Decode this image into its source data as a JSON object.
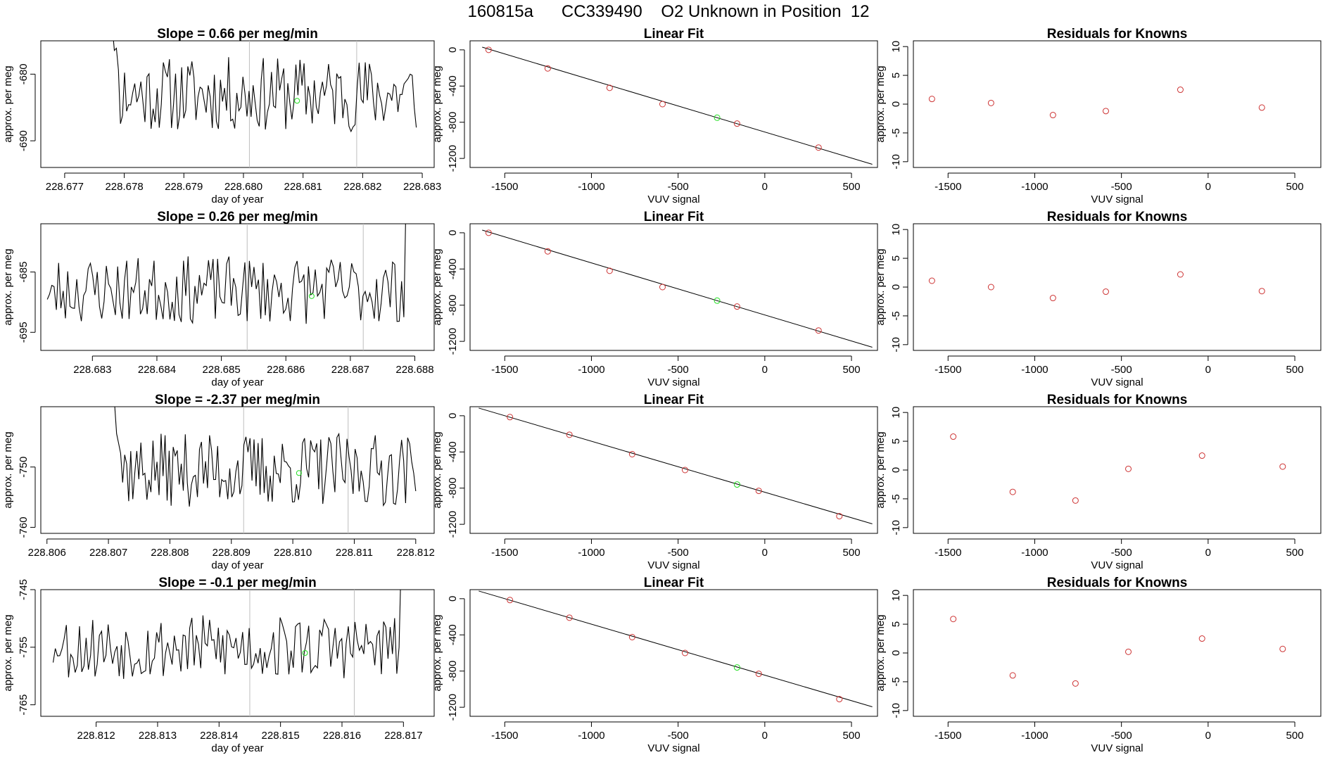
{
  "page": {
    "title": "160815a      CC339490    O2 Unknown in Position  12"
  },
  "colors": {
    "known": "#cd3333",
    "unknown": "#22dd22",
    "line": "#000000",
    "vline": "#bebebe"
  },
  "chart_data": [
    {
      "type": "line",
      "row": 0,
      "kind": "series",
      "title": "Slope =  0.66  per meg/min",
      "xlabel": "day of year",
      "ylabel": "approx. per meg",
      "xlim": [
        228.6766,
        228.6832
      ],
      "ylim": [
        -694,
        -675
      ],
      "xticks": [
        228.677,
        228.678,
        228.679,
        228.68,
        228.681,
        228.682,
        228.683
      ],
      "xtick_labels": [
        "228.677",
        "228.678",
        "228.679",
        "228.680",
        "228.681",
        "228.682",
        "228.683"
      ],
      "yticks": [
        -680,
        -690
      ],
      "ytick_labels": [
        "-680",
        "-690"
      ],
      "vlines": [
        228.6801,
        228.6819
      ],
      "series_x_range": [
        228.6778,
        228.6829
      ],
      "series_center": -683,
      "series_amplitude": 3.5,
      "series_points": 150,
      "series_seed": 11,
      "series_start": -672,
      "series_end": -688,
      "unknown_point": {
        "x": 228.6809,
        "y": -684
      }
    },
    {
      "type": "scatter",
      "row": 0,
      "kind": "fit",
      "title": "Linear Fit",
      "xlabel": "VUV signal",
      "ylabel": "approx. per meg",
      "xlim": [
        -1700,
        650
      ],
      "ylim": [
        -1300,
        100
      ],
      "xticks": [
        -1500,
        -1000,
        -500,
        0,
        500
      ],
      "xtick_labels": [
        "-1500",
        "-1000",
        "-500",
        "0",
        "500"
      ],
      "yticks": [
        0,
        -400,
        -800,
        -1200
      ],
      "ytick_labels": [
        "0",
        "-400",
        "-800",
        "-1200"
      ],
      "line": {
        "x": [
          -1630,
          620
        ],
        "y": [
          30,
          -1265
        ]
      },
      "known_points": [
        [
          -1593,
          0
        ],
        [
          -1252,
          -205
        ],
        [
          -895,
          -420
        ],
        [
          -590,
          -600
        ],
        [
          -160,
          -815
        ],
        [
          310,
          -1080
        ]
      ],
      "unknown_point": {
        "x": -275,
        "y": -750
      }
    },
    {
      "type": "scatter",
      "row": 0,
      "kind": "resid",
      "title": "Residuals for Knowns",
      "xlabel": "VUV signal",
      "ylabel": "approx. per meg",
      "xlim": [
        -1700,
        650
      ],
      "ylim": [
        -11,
        11
      ],
      "xticks": [
        -1500,
        -1000,
        -500,
        0,
        500
      ],
      "xtick_labels": [
        "-1500",
        "-1000",
        "-500",
        "0",
        "500"
      ],
      "yticks": [
        10,
        5,
        0,
        -5,
        -10
      ],
      "ytick_labels": [
        "10",
        "5",
        "0",
        "-5",
        "-10"
      ],
      "points": [
        [
          -1593,
          0.9
        ],
        [
          -1252,
          0.2
        ],
        [
          -895,
          -1.9
        ],
        [
          -590,
          -1.2
        ],
        [
          -160,
          2.5
        ],
        [
          310,
          -0.6
        ]
      ]
    },
    {
      "type": "line",
      "row": 1,
      "kind": "series",
      "title": "Slope =  0.26  per meg/min",
      "xlabel": "day of year",
      "ylabel": "approx. per meg",
      "xlim": [
        228.6822,
        228.6883
      ],
      "ylim": [
        -698,
        -677
      ],
      "xticks": [
        228.683,
        228.684,
        228.685,
        228.686,
        228.687,
        228.688
      ],
      "xtick_labels": [
        "228.683",
        "228.684",
        "228.685",
        "228.686",
        "228.687",
        "228.688"
      ],
      "yticks": [
        -685,
        -695
      ],
      "ytick_labels": [
        "-685",
        "-695"
      ],
      "vlines": [
        228.6854,
        228.6872
      ],
      "series_x_range": [
        228.6823,
        228.6879
      ],
      "series_center": -688,
      "series_amplitude": 3.5,
      "series_points": 160,
      "series_seed": 23,
      "series_start": -689,
      "series_end": -675,
      "unknown_point": {
        "x": 228.6864,
        "y": -689
      }
    },
    {
      "type": "scatter",
      "row": 1,
      "kind": "fit",
      "title": "Linear Fit",
      "xlabel": "VUV signal",
      "ylabel": "approx. per meg",
      "xlim": [
        -1700,
        650
      ],
      "ylim": [
        -1300,
        100
      ],
      "xticks": [
        -1500,
        -1000,
        -500,
        0,
        500
      ],
      "xtick_labels": [
        "-1500",
        "-1000",
        "-500",
        "0",
        "500"
      ],
      "yticks": [
        0,
        -400,
        -800,
        -1200
      ],
      "ytick_labels": [
        "0",
        "-400",
        "-800",
        "-1200"
      ],
      "line": {
        "x": [
          -1630,
          620
        ],
        "y": [
          30,
          -1265
        ]
      },
      "known_points": [
        [
          -1593,
          0
        ],
        [
          -1252,
          -205
        ],
        [
          -895,
          -420
        ],
        [
          -590,
          -600
        ],
        [
          -160,
          -815
        ],
        [
          310,
          -1080
        ]
      ],
      "unknown_point": {
        "x": -275,
        "y": -750
      }
    },
    {
      "type": "scatter",
      "row": 1,
      "kind": "resid",
      "title": "Residuals for Knowns",
      "xlabel": "VUV signal",
      "ylabel": "approx. per meg",
      "xlim": [
        -1700,
        650
      ],
      "ylim": [
        -11,
        11
      ],
      "xticks": [
        -1500,
        -1000,
        -500,
        0,
        500
      ],
      "xtick_labels": [
        "-1500",
        "-1000",
        "-500",
        "0",
        "500"
      ],
      "yticks": [
        10,
        5,
        0,
        -5,
        -10
      ],
      "ytick_labels": [
        "10",
        "5",
        "0",
        "-5",
        "-10"
      ],
      "points": [
        [
          -1593,
          1.1
        ],
        [
          -1252,
          0.0
        ],
        [
          -895,
          -1.9
        ],
        [
          -590,
          -0.8
        ],
        [
          -160,
          2.2
        ],
        [
          310,
          -0.7
        ]
      ]
    },
    {
      "type": "line",
      "row": 2,
      "kind": "series",
      "title": "Slope =  -2.37  per meg/min",
      "xlabel": "day of year",
      "ylabel": "approx. per meg",
      "xlim": [
        228.8059,
        228.8123
      ],
      "ylim": [
        -761,
        -740
      ],
      "xticks": [
        228.806,
        228.807,
        228.808,
        228.809,
        228.81,
        228.811,
        228.812
      ],
      "xtick_labels": [
        "228.806",
        "228.807",
        "228.808",
        "228.809",
        "228.810",
        "228.811",
        "228.812"
      ],
      "yticks": [
        -750,
        -760
      ],
      "ytick_labels": [
        "-750",
        "-760"
      ],
      "vlines": [
        228.8092,
        228.8109
      ],
      "series_x_range": [
        228.8071,
        228.812
      ],
      "series_center": -750.5,
      "series_amplitude": 3.8,
      "series_points": 150,
      "series_seed": 37,
      "series_start": -740,
      "series_end": -754,
      "unknown_point": {
        "x": 228.8101,
        "y": -751
      }
    },
    {
      "type": "scatter",
      "row": 2,
      "kind": "fit",
      "title": "Linear Fit",
      "xlabel": "VUV signal",
      "ylabel": "approx. per meg",
      "xlim": [
        -1700,
        650
      ],
      "ylim": [
        -1300,
        100
      ],
      "xticks": [
        -1500,
        -1000,
        -500,
        0,
        500
      ],
      "xtick_labels": [
        "-1500",
        "-1000",
        "-500",
        "0",
        "500"
      ],
      "yticks": [
        0,
        -400,
        -800,
        -1200
      ],
      "ytick_labels": [
        "0",
        "-400",
        "-800",
        "-1200"
      ],
      "line": {
        "x": [
          -1650,
          620
        ],
        "y": [
          85,
          -1195
        ]
      },
      "known_points": [
        [
          -1470,
          -15
        ],
        [
          -1127,
          -210
        ],
        [
          -765,
          -425
        ],
        [
          -460,
          -600
        ],
        [
          -35,
          -830
        ],
        [
          430,
          -1110
        ]
      ],
      "unknown_point": {
        "x": -160,
        "y": -760
      }
    },
    {
      "type": "scatter",
      "row": 2,
      "kind": "resid",
      "title": "Residuals for Knowns",
      "xlabel": "VUV signal",
      "ylabel": "approx. per meg",
      "xlim": [
        -1700,
        650
      ],
      "ylim": [
        -11,
        11
      ],
      "xticks": [
        -1500,
        -1000,
        -500,
        0,
        500
      ],
      "xtick_labels": [
        "-1500",
        "-1000",
        "-500",
        "0",
        "500"
      ],
      "yticks": [
        10,
        5,
        0,
        -5,
        -10
      ],
      "ytick_labels": [
        "10",
        "5",
        "0",
        "-5",
        "-10"
      ],
      "points": [
        [
          -1470,
          5.8
        ],
        [
          -1127,
          -3.8
        ],
        [
          -765,
          -5.3
        ],
        [
          -460,
          0.2
        ],
        [
          -35,
          2.5
        ],
        [
          430,
          0.6
        ]
      ]
    },
    {
      "type": "line",
      "row": 3,
      "kind": "series",
      "title": "Slope =  -0.1  per meg/min",
      "xlabel": "day of year",
      "ylabel": "approx. per meg",
      "xlim": [
        228.8111,
        228.8175
      ],
      "ylim": [
        -767,
        -745
      ],
      "xticks": [
        228.812,
        228.813,
        228.814,
        228.815,
        228.816,
        228.817
      ],
      "xtick_labels": [
        "228.812",
        "228.813",
        "228.814",
        "228.815",
        "228.816",
        "228.817"
      ],
      "yticks": [
        -745,
        -755,
        -765
      ],
      "ytick_labels": [
        "-745",
        "-755",
        "-765"
      ],
      "vlines": [
        228.8145,
        228.8162
      ],
      "series_x_range": [
        228.8113,
        228.817
      ],
      "series_center": -755,
      "series_amplitude": 3.5,
      "series_points": 160,
      "series_seed": 53,
      "series_start": -756,
      "series_end": -742,
      "unknown_point": {
        "x": 228.8154,
        "y": -756
      }
    },
    {
      "type": "scatter",
      "row": 3,
      "kind": "fit",
      "title": "Linear Fit",
      "xlabel": "VUV signal",
      "ylabel": "approx. per meg",
      "xlim": [
        -1700,
        650
      ],
      "ylim": [
        -1300,
        100
      ],
      "xticks": [
        -1500,
        -1000,
        -500,
        0,
        500
      ],
      "xtick_labels": [
        "-1500",
        "-1000",
        "-500",
        "0",
        "500"
      ],
      "yticks": [
        0,
        -400,
        -800,
        -1200
      ],
      "ytick_labels": [
        "0",
        "-400",
        "-800",
        "-1200"
      ],
      "line": {
        "x": [
          -1650,
          620
        ],
        "y": [
          85,
          -1195
        ]
      },
      "known_points": [
        [
          -1470,
          -15
        ],
        [
          -1127,
          -210
        ],
        [
          -765,
          -425
        ],
        [
          -460,
          -600
        ],
        [
          -35,
          -830
        ],
        [
          430,
          -1110
        ]
      ],
      "unknown_point": {
        "x": -160,
        "y": -760
      }
    },
    {
      "type": "scatter",
      "row": 3,
      "kind": "resid",
      "title": "Residuals for Knowns",
      "xlabel": "VUV signal",
      "ylabel": "approx. per meg",
      "xlim": [
        -1700,
        650
      ],
      "ylim": [
        -11,
        11
      ],
      "xticks": [
        -1500,
        -1000,
        -500,
        0,
        500
      ],
      "xtick_labels": [
        "-1500",
        "-1000",
        "-500",
        "0",
        "500"
      ],
      "yticks": [
        10,
        5,
        0,
        -5,
        -10
      ],
      "ytick_labels": [
        "10",
        "5",
        "0",
        "-5",
        "-10"
      ],
      "points": [
        [
          -1470,
          5.9
        ],
        [
          -1127,
          -3.9
        ],
        [
          -765,
          -5.3
        ],
        [
          -460,
          0.2
        ],
        [
          -35,
          2.5
        ],
        [
          430,
          0.7
        ]
      ]
    }
  ]
}
